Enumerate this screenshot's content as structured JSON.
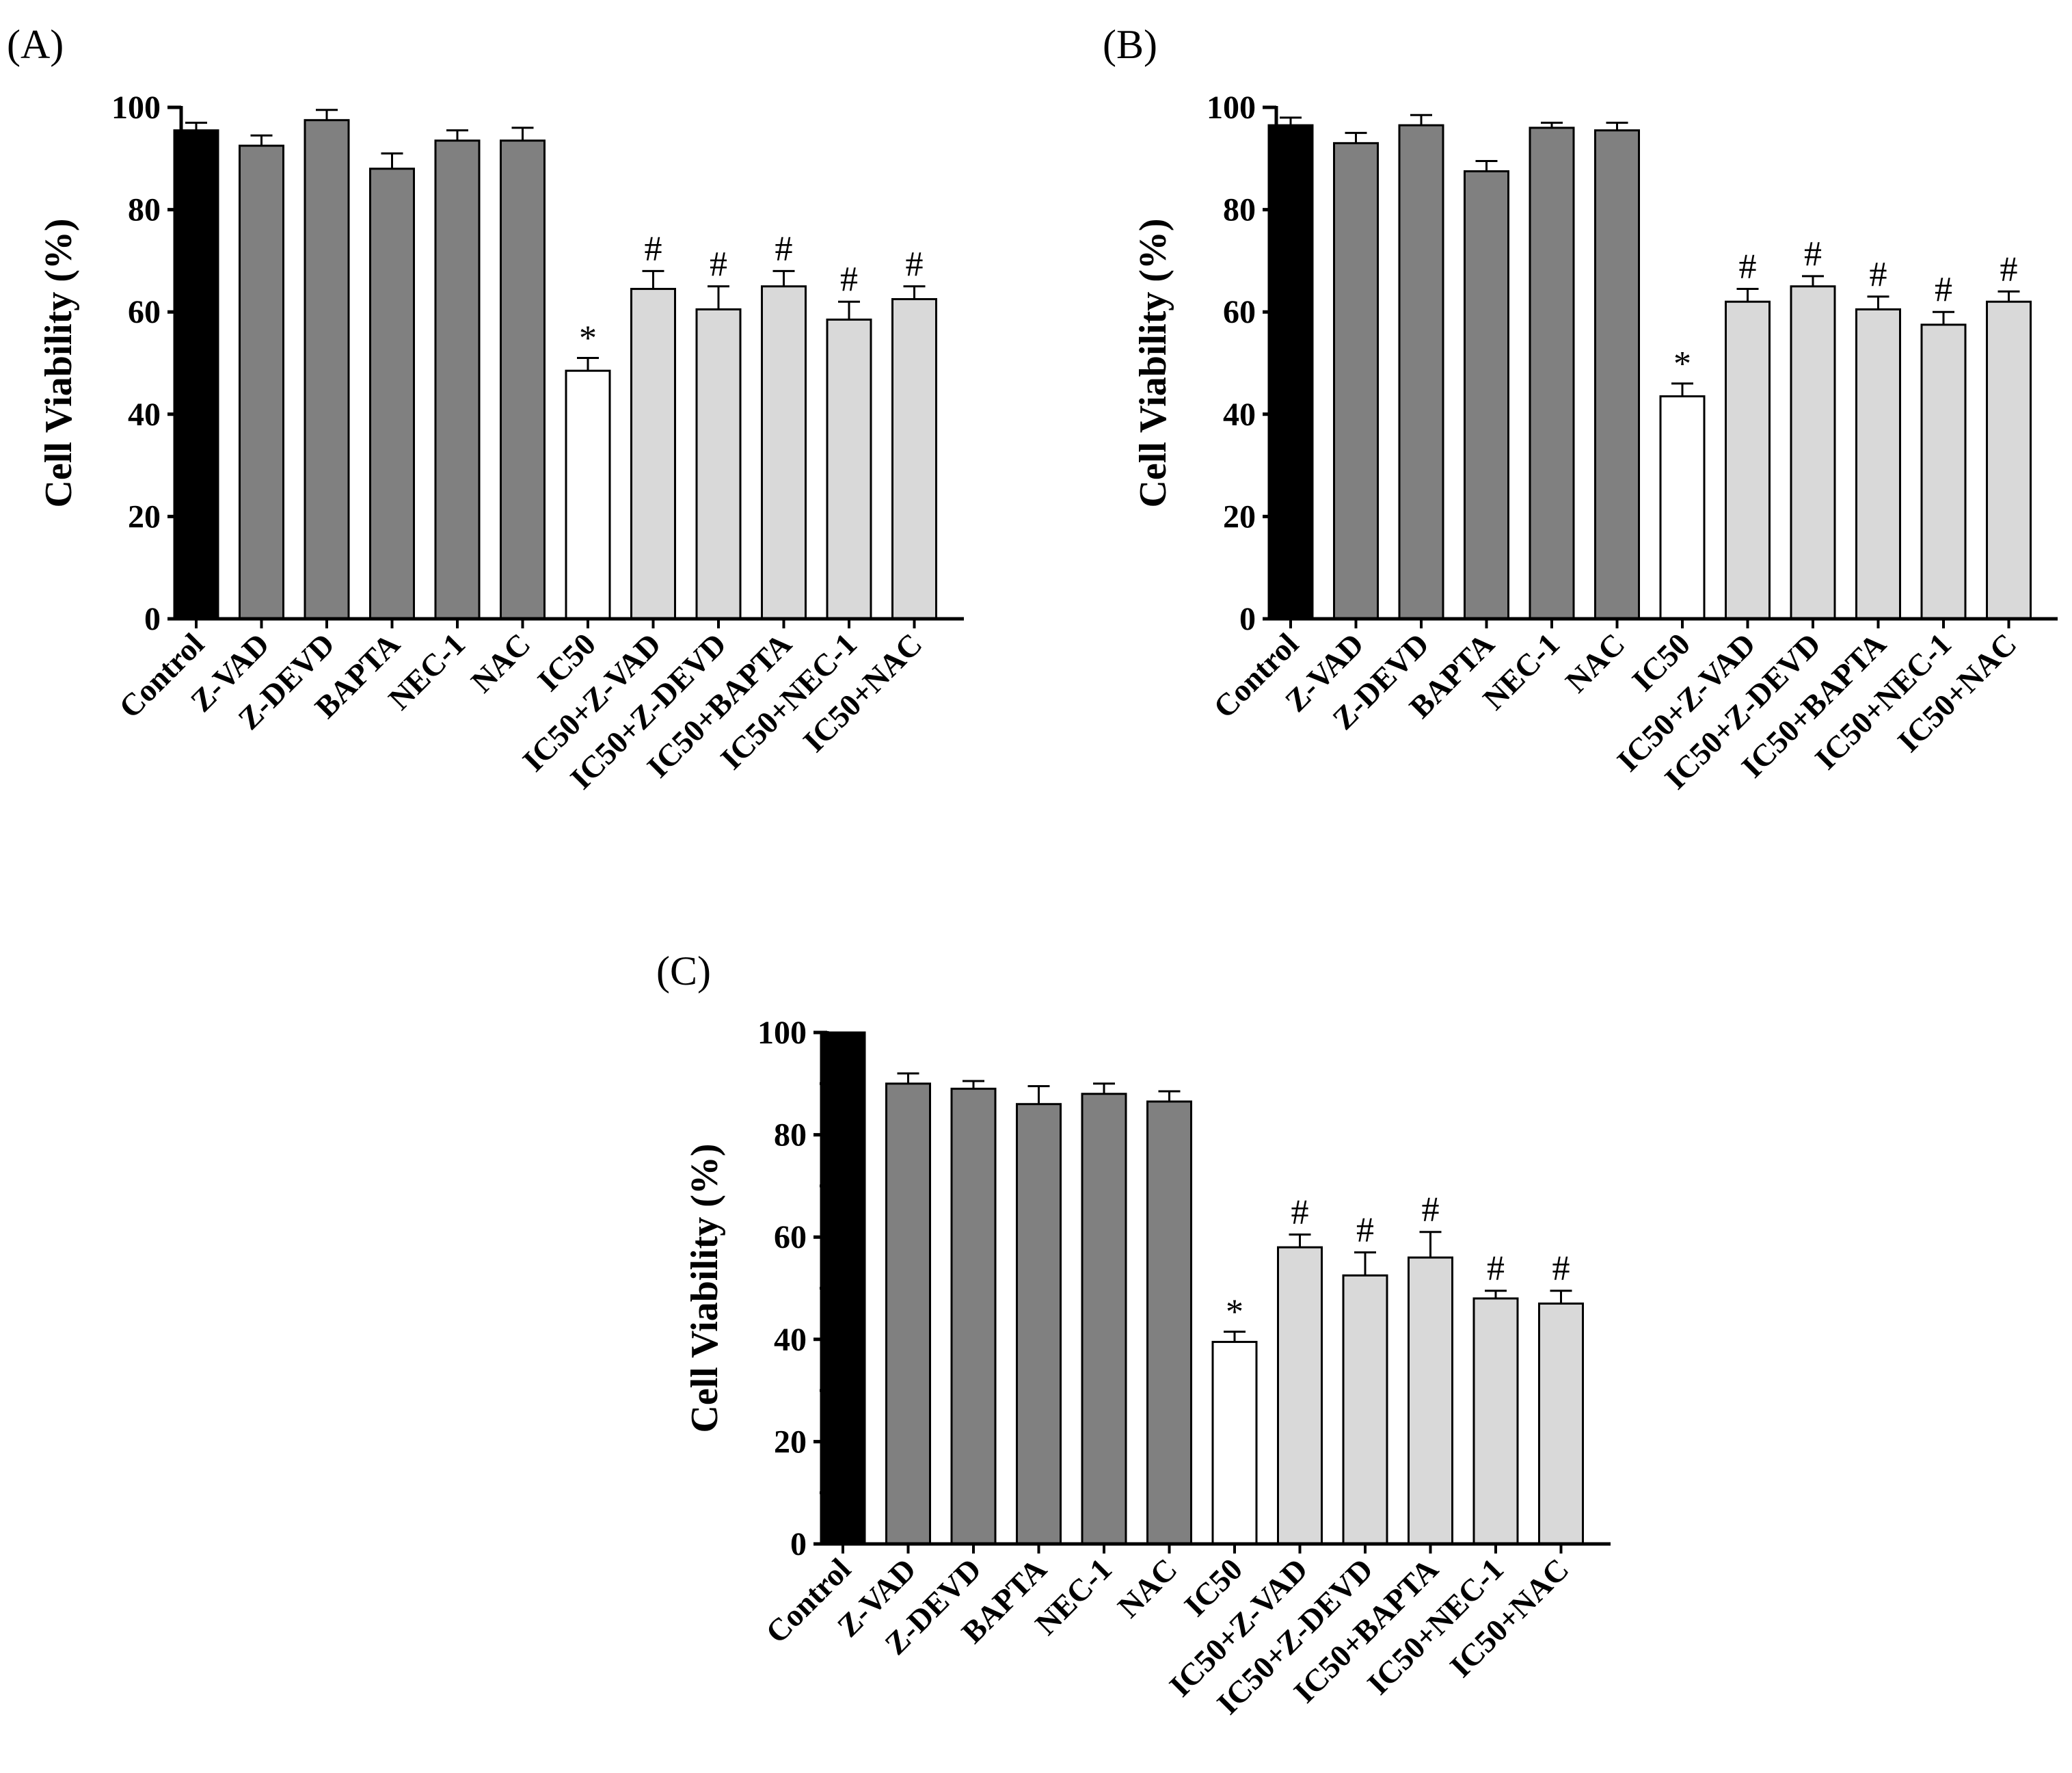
{
  "figure": {
    "colors": {
      "control": "#000000",
      "inhibitor": "#808080",
      "ic50": "#ffffff",
      "combo": "#d9d9d9",
      "axis": "#000000"
    }
  },
  "chart_data": [
    {
      "panel": "(A)",
      "type": "bar",
      "ylabel": "Cell Viability (%)",
      "ylim": [
        0,
        100
      ],
      "yticks": [
        "0",
        "20",
        "40",
        "60",
        "80",
        "100"
      ],
      "categories": [
        "Control",
        "Z-VAD",
        "Z-DEVD",
        "BAPTA",
        "NEC-1",
        "NAC",
        "IC50",
        "IC50+Z-VAD",
        "IC50+Z-DEVD",
        "IC50+BAPTA",
        "IC50+NEC-1",
        "IC50+NAC"
      ],
      "groups": [
        "control",
        "inhibitor",
        "inhibitor",
        "inhibitor",
        "inhibitor",
        "inhibitor",
        "ic50",
        "combo",
        "combo",
        "combo",
        "combo",
        "combo"
      ],
      "values": [
        95.5,
        92.5,
        97.5,
        88.0,
        93.5,
        93.5,
        48.5,
        64.5,
        60.5,
        65.0,
        58.5,
        62.5
      ],
      "errors": [
        1.5,
        2.0,
        2.0,
        3.0,
        2.0,
        2.5,
        2.5,
        3.5,
        4.5,
        3.0,
        3.5,
        2.5
      ],
      "annotations": [
        "",
        "",
        "",
        "",
        "",
        "",
        "*",
        "#",
        "#",
        "#",
        "#",
        "#"
      ]
    },
    {
      "panel": "(B)",
      "type": "bar",
      "ylabel": "Cell Viability (%)",
      "ylim": [
        0,
        100
      ],
      "yticks": [
        "0",
        "20",
        "40",
        "60",
        "80",
        "100"
      ],
      "categories": [
        "Control",
        "Z-VAD",
        "Z-DEVD",
        "BAPTA",
        "NEC-1",
        "NAC",
        "IC50",
        "IC50+Z-VAD",
        "IC50+Z-DEVD",
        "IC50+BAPTA",
        "IC50+NEC-1",
        "IC50+NAC"
      ],
      "groups": [
        "control",
        "inhibitor",
        "inhibitor",
        "inhibitor",
        "inhibitor",
        "inhibitor",
        "ic50",
        "combo",
        "combo",
        "combo",
        "combo",
        "combo"
      ],
      "values": [
        96.5,
        93.0,
        96.5,
        87.5,
        96.0,
        95.5,
        43.5,
        62.0,
        65.0,
        60.5,
        57.5,
        62.0
      ],
      "errors": [
        1.5,
        2.0,
        2.0,
        2.0,
        1.0,
        1.5,
        2.5,
        2.5,
        2.0,
        2.5,
        2.5,
        2.0
      ],
      "annotations": [
        "",
        "",
        "",
        "",
        "",
        "",
        "*",
        "#",
        "#",
        "#",
        "#",
        "#"
      ]
    },
    {
      "panel": "(C)",
      "type": "bar",
      "ylabel": "Cell Viability (%)",
      "ylim": [
        0,
        100
      ],
      "yticks": [
        "0",
        "20",
        "40",
        "60",
        "80",
        "100"
      ],
      "categories": [
        "Control",
        "Z-VAD",
        "Z-DEVD",
        "BAPTA",
        "NEC-1",
        "NAC",
        "IC50",
        "IC50+Z-VAD",
        "IC50+Z-DEVD",
        "IC50+BAPTA",
        "IC50+NEC-1",
        "IC50+NAC"
      ],
      "groups": [
        "control",
        "inhibitor",
        "inhibitor",
        "inhibitor",
        "inhibitor",
        "inhibitor",
        "ic50",
        "combo",
        "combo",
        "combo",
        "combo",
        "combo"
      ],
      "values": [
        100.0,
        90.0,
        89.0,
        86.0,
        88.0,
        86.5,
        39.5,
        58.0,
        52.5,
        56.0,
        48.0,
        47.0
      ],
      "errors": [
        0.0,
        2.0,
        1.5,
        3.5,
        2.0,
        2.0,
        2.0,
        2.5,
        4.5,
        5.0,
        1.5,
        2.5
      ],
      "annotations": [
        "",
        "",
        "",
        "",
        "",
        "",
        "*",
        "#",
        "#",
        "#",
        "#",
        "#"
      ]
    }
  ]
}
